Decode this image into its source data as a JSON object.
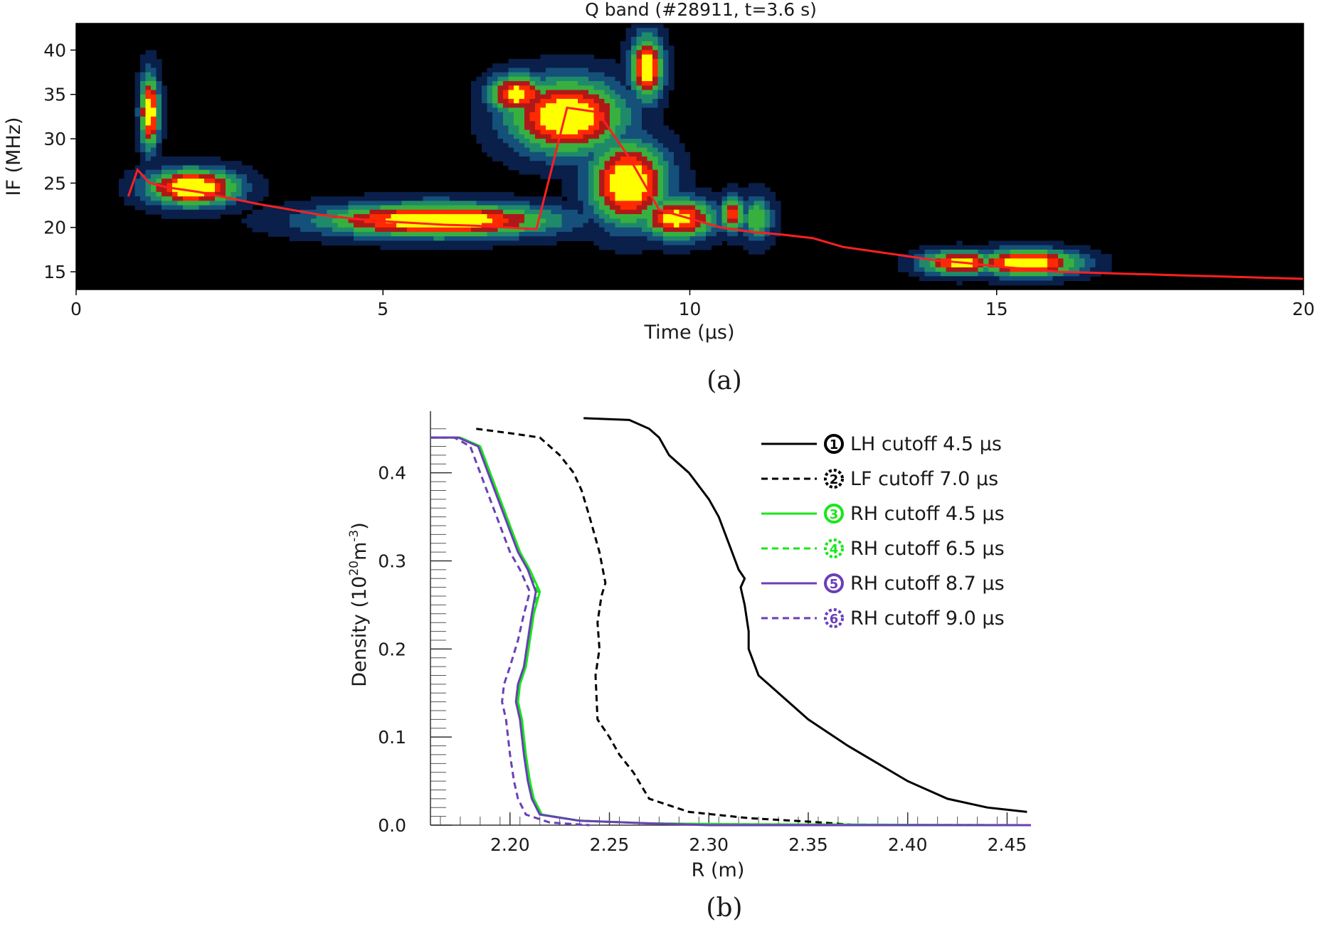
{
  "chart_data": [
    {
      "type": "heatmap",
      "panel_label": "(a)",
      "title": "Q band (#28911, t=3.6 s)",
      "xlabel": "Time (μs)",
      "ylabel": "IF (MHz)",
      "xlim": [
        0,
        20
      ],
      "ylim": [
        13,
        43
      ],
      "xticks": [
        "0",
        "5",
        "10",
        "15",
        "20"
      ],
      "yticks": [
        "15",
        "20",
        "25",
        "30",
        "35",
        "40"
      ],
      "colormap": [
        "#000000",
        "#0a1f4a",
        "#14507a",
        "#1f8a6a",
        "#38b040",
        "#b01818",
        "#ff2a00",
        "#ffff00"
      ],
      "ridge_color": "#ff2020",
      "intensity_blobs": [
        {
          "t": 1.2,
          "f": 33.0,
          "level": 0.95,
          "t_width": 0.15,
          "f_width": 4.0
        },
        {
          "t": 1.9,
          "f": 24.5,
          "level": 1.0,
          "t_width": 0.7,
          "f_width": 2.0
        },
        {
          "t": 5.9,
          "f": 20.8,
          "level": 1.0,
          "t_width": 1.8,
          "f_width": 1.8
        },
        {
          "t": 8.0,
          "f": 32.5,
          "level": 1.0,
          "t_width": 0.9,
          "f_width": 4.0
        },
        {
          "t": 9.3,
          "f": 38.0,
          "level": 0.95,
          "t_width": 0.25,
          "f_width": 3.5
        },
        {
          "t": 7.2,
          "f": 35.0,
          "level": 0.9,
          "t_width": 0.45,
          "f_width": 2.2
        },
        {
          "t": 9.0,
          "f": 25.0,
          "level": 1.0,
          "t_width": 0.6,
          "f_width": 4.5
        },
        {
          "t": 9.8,
          "f": 21.0,
          "level": 0.9,
          "t_width": 0.6,
          "f_width": 2.2
        },
        {
          "t": 10.7,
          "f": 21.5,
          "level": 0.8,
          "t_width": 0.2,
          "f_width": 2.0
        },
        {
          "t": 11.1,
          "f": 21.0,
          "level": 0.55,
          "t_width": 0.25,
          "f_width": 2.5
        },
        {
          "t": 14.4,
          "f": 16.0,
          "level": 0.9,
          "t_width": 0.6,
          "f_width": 1.3
        },
        {
          "t": 15.5,
          "f": 16.0,
          "level": 1.0,
          "t_width": 0.8,
          "f_width": 1.4
        }
      ],
      "ridge": {
        "t": [
          0.85,
          1.0,
          1.2,
          1.5,
          2.0,
          2.5,
          3.0,
          3.5,
          4.0,
          4.5,
          5.0,
          5.5,
          6.0,
          6.5,
          7.0,
          7.5,
          8.0,
          8.5,
          9.0,
          9.5,
          10.0,
          10.5,
          11.0,
          11.5,
          12.0,
          12.5,
          13.0,
          13.5,
          14.0,
          14.5,
          15.0,
          15.5,
          16.0,
          16.5,
          17.0,
          17.5,
          18.0,
          18.5,
          19.0,
          19.5,
          20.0
        ],
        "f": [
          23.5,
          26.5,
          25.0,
          24.5,
          24.0,
          23.3,
          22.6,
          22.0,
          21.4,
          21.0,
          20.7,
          20.5,
          20.3,
          20.2,
          20.0,
          19.8,
          33.5,
          33.0,
          28.0,
          22.0,
          21.0,
          20.0,
          19.5,
          19.2,
          18.8,
          17.8,
          17.3,
          16.8,
          16.3,
          16.0,
          15.6,
          15.3,
          15.0,
          14.9,
          14.8,
          14.7,
          14.6,
          14.5,
          14.4,
          14.3,
          14.2
        ]
      }
    },
    {
      "type": "line",
      "panel_label": "(b)",
      "xlabel": "R (m)",
      "ylabel": "Density (10",
      "ylabel_sup1": "20",
      "ylabel_mid": "m",
      "ylabel_sup2": "-3",
      "ylabel_end": ")",
      "xlim": [
        2.16,
        2.462
      ],
      "ylim": [
        0.0,
        0.47
      ],
      "xticks": [
        "2.20",
        "2.25",
        "2.30",
        "2.35",
        "2.40",
        "2.45"
      ],
      "yticks": [
        "0.0",
        "0.1",
        "0.2",
        "0.3",
        "0.4"
      ],
      "legend_position": "top-right",
      "series": [
        {
          "marker": "1",
          "name": "LH cutoff 4.5 μs",
          "color": "#000000",
          "dash": "solid",
          "r": [
            2.237,
            2.26,
            2.27,
            2.275,
            2.28,
            2.29,
            2.3,
            2.305,
            2.31,
            2.315,
            2.318,
            2.316,
            2.318,
            2.32,
            2.32,
            2.325,
            2.335,
            2.35,
            2.37,
            2.385,
            2.4,
            2.42,
            2.44,
            2.46
          ],
          "n": [
            0.462,
            0.46,
            0.45,
            0.44,
            0.42,
            0.4,
            0.37,
            0.35,
            0.32,
            0.29,
            0.28,
            0.27,
            0.25,
            0.22,
            0.2,
            0.17,
            0.15,
            0.12,
            0.09,
            0.07,
            0.05,
            0.03,
            0.02,
            0.015
          ]
        },
        {
          "marker": "2",
          "name": "LF cutoff 7.0 μs",
          "color": "#000000",
          "dash": "dashed",
          "r": [
            2.183,
            2.2,
            2.215,
            2.225,
            2.232,
            2.236,
            2.24,
            2.245,
            2.248,
            2.246,
            2.244,
            2.245,
            2.243,
            2.244,
            2.25,
            2.255,
            2.262,
            2.27,
            2.29,
            2.32,
            2.35,
            2.375
          ],
          "n": [
            0.45,
            0.445,
            0.44,
            0.42,
            0.4,
            0.38,
            0.35,
            0.31,
            0.275,
            0.26,
            0.23,
            0.2,
            0.17,
            0.12,
            0.1,
            0.08,
            0.06,
            0.03,
            0.015,
            0.008,
            0.004,
            0.0
          ]
        },
        {
          "marker": "3",
          "name": "RH cutoff 4.5 μs",
          "color": "#19e619",
          "dash": "solid",
          "r": [
            2.16,
            2.175,
            2.185,
            2.19,
            2.195,
            2.2,
            2.205,
            2.21,
            2.215,
            2.212,
            2.21,
            2.208,
            2.205,
            2.204,
            2.206,
            2.208,
            2.21,
            2.212,
            2.216,
            2.235,
            2.27,
            2.32,
            2.462
          ],
          "n": [
            0.44,
            0.44,
            0.43,
            0.4,
            0.37,
            0.34,
            0.31,
            0.29,
            0.265,
            0.24,
            0.21,
            0.18,
            0.16,
            0.14,
            0.12,
            0.08,
            0.05,
            0.03,
            0.012,
            0.005,
            0.002,
            0.001,
            0.0
          ]
        },
        {
          "marker": "4",
          "name": "RH cutoff 6.5 μs",
          "color": "#19e619",
          "dash": "dashed",
          "r": [
            2.16,
            2.175,
            2.185,
            2.19,
            2.195,
            2.2,
            2.205,
            2.209,
            2.214,
            2.211,
            2.209,
            2.207,
            2.204,
            2.203,
            2.205,
            2.207,
            2.209,
            2.211,
            2.215,
            2.235,
            2.27,
            2.32,
            2.462
          ],
          "n": [
            0.44,
            0.44,
            0.43,
            0.4,
            0.37,
            0.34,
            0.31,
            0.29,
            0.265,
            0.24,
            0.21,
            0.18,
            0.16,
            0.14,
            0.12,
            0.08,
            0.05,
            0.03,
            0.012,
            0.005,
            0.002,
            0.001,
            0.0
          ]
        },
        {
          "marker": "5",
          "name": "RH cutoff 8.7 μs",
          "color": "#6a3fb8",
          "dash": "solid",
          "r": [
            2.16,
            2.174,
            2.184,
            2.189,
            2.194,
            2.199,
            2.204,
            2.209,
            2.213,
            2.211,
            2.209,
            2.207,
            2.204,
            2.203,
            2.205,
            2.207,
            2.209,
            2.211,
            2.215,
            2.235,
            2.27,
            2.3,
            2.462
          ],
          "n": [
            0.44,
            0.44,
            0.43,
            0.4,
            0.37,
            0.34,
            0.31,
            0.29,
            0.265,
            0.24,
            0.21,
            0.18,
            0.16,
            0.14,
            0.12,
            0.08,
            0.05,
            0.03,
            0.012,
            0.005,
            0.002,
            0.0,
            0.0
          ]
        },
        {
          "marker": "6",
          "name": "RH cutoff 9.0 μs",
          "color": "#6a3fb8",
          "dash": "dashed",
          "r": [
            2.16,
            2.172,
            2.18,
            2.185,
            2.19,
            2.195,
            2.2,
            2.205,
            2.21,
            2.207,
            2.204,
            2.2,
            2.197,
            2.196,
            2.198,
            2.2,
            2.202,
            2.204,
            2.208,
            2.22,
            2.24
          ],
          "n": [
            0.44,
            0.44,
            0.43,
            0.4,
            0.37,
            0.34,
            0.31,
            0.29,
            0.265,
            0.24,
            0.21,
            0.18,
            0.16,
            0.14,
            0.12,
            0.08,
            0.05,
            0.03,
            0.012,
            0.003,
            0.0
          ]
        }
      ]
    }
  ]
}
